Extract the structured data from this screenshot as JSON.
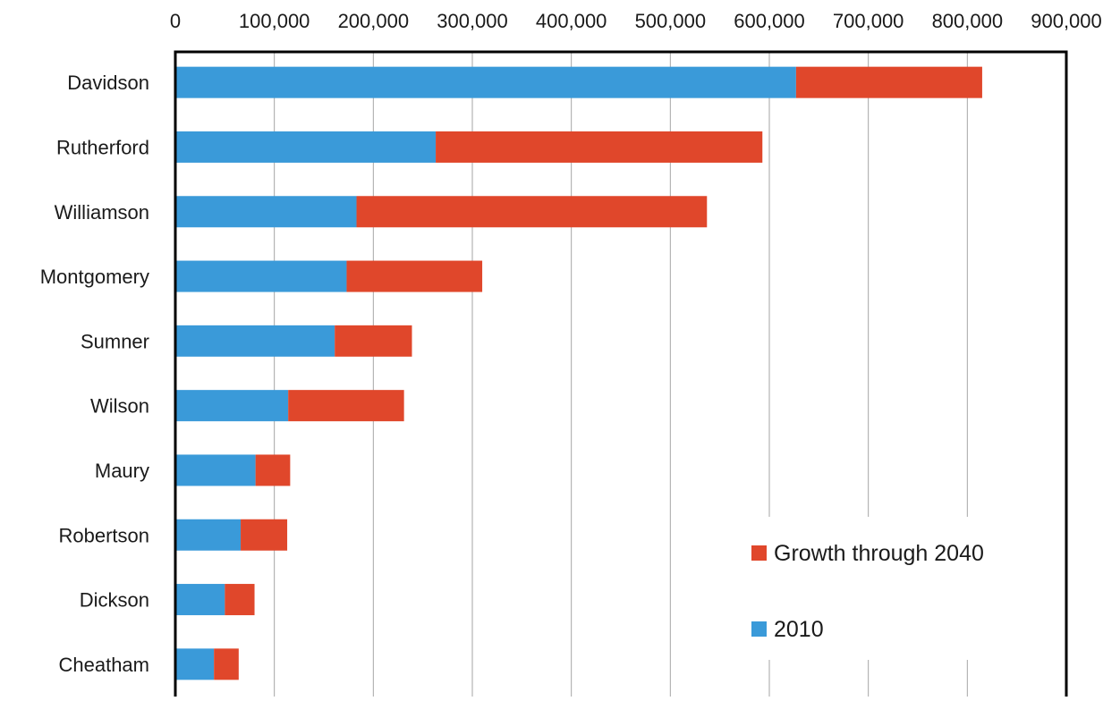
{
  "chart_data": {
    "type": "bar",
    "orientation": "horizontal",
    "stacked": true,
    "title": "",
    "xlabel": "",
    "ylabel": "",
    "categories": [
      "Davidson",
      "Rutherford",
      "Williamson",
      "Montgomery",
      "Sumner",
      "Wilson",
      "Maury",
      "Robertson",
      "Dickson",
      "Cheatham"
    ],
    "series": [
      {
        "name": "2010",
        "color": "#3a9ad9",
        "values": [
          627000,
          263000,
          183000,
          173000,
          161000,
          114000,
          81000,
          66000,
          50000,
          39000
        ]
      },
      {
        "name": "Growth through 2040",
        "color": "#e0472b",
        "values": [
          188000,
          330000,
          354000,
          137000,
          78000,
          117000,
          35000,
          47000,
          30000,
          25000
        ]
      }
    ],
    "xlim": [
      0,
      900000
    ],
    "xticks": [
      0,
      100000,
      200000,
      300000,
      400000,
      500000,
      600000,
      700000,
      800000,
      900000
    ],
    "xtick_labels": [
      "0",
      "100,000",
      "200,000",
      "300,000",
      "400,000",
      "500,000",
      "600,000",
      "700,000",
      "800,000",
      "900,000"
    ],
    "x_axis_position": "top",
    "grid": "vertical",
    "legend": {
      "placement": "bottom-right",
      "order": [
        "Growth through 2040",
        "2010"
      ]
    }
  }
}
